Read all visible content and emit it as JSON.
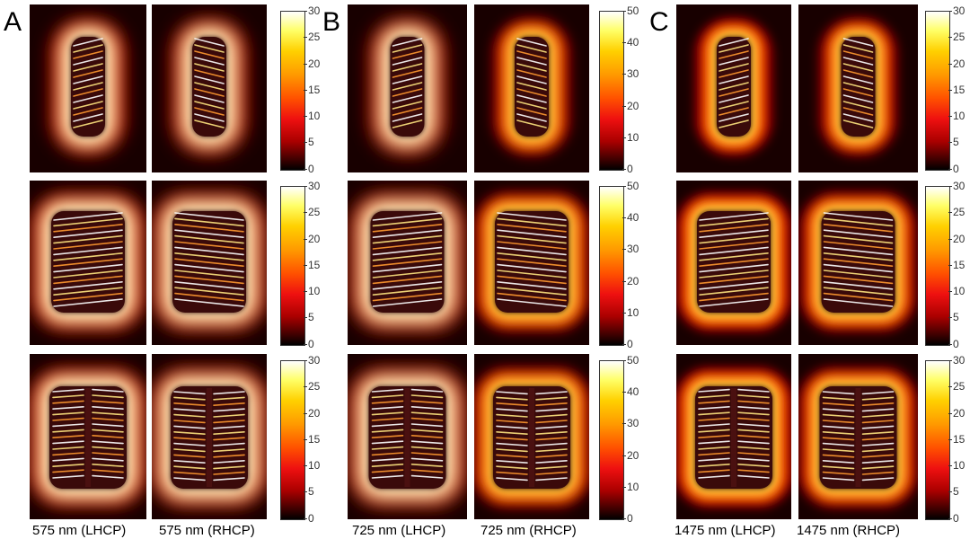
{
  "panels": [
    {
      "letter": "A",
      "captions": [
        "575 nm (LHCP)",
        "575 nm (RHCP)"
      ],
      "colorbar_ticks": [
        "30",
        "25",
        "20",
        "15",
        "10",
        "5",
        "0"
      ]
    },
    {
      "letter": "B",
      "captions": [
        "725 nm (LHCP)",
        "725 nm (RHCP)"
      ],
      "colorbar_ticks": [
        "50",
        "40",
        "30",
        "20",
        "10",
        "0"
      ]
    },
    {
      "letter": "C",
      "captions": [
        "1475 nm (LHCP)",
        "1475 nm (RHCP)"
      ],
      "colorbar_ticks": [
        "30",
        "25",
        "20",
        "15",
        "10",
        "5",
        "0"
      ]
    }
  ],
  "colormap": [
    "#000000",
    "#aa0000",
    "#ee1010",
    "#ff9900",
    "#ffd000",
    "#ffffff"
  ]
}
